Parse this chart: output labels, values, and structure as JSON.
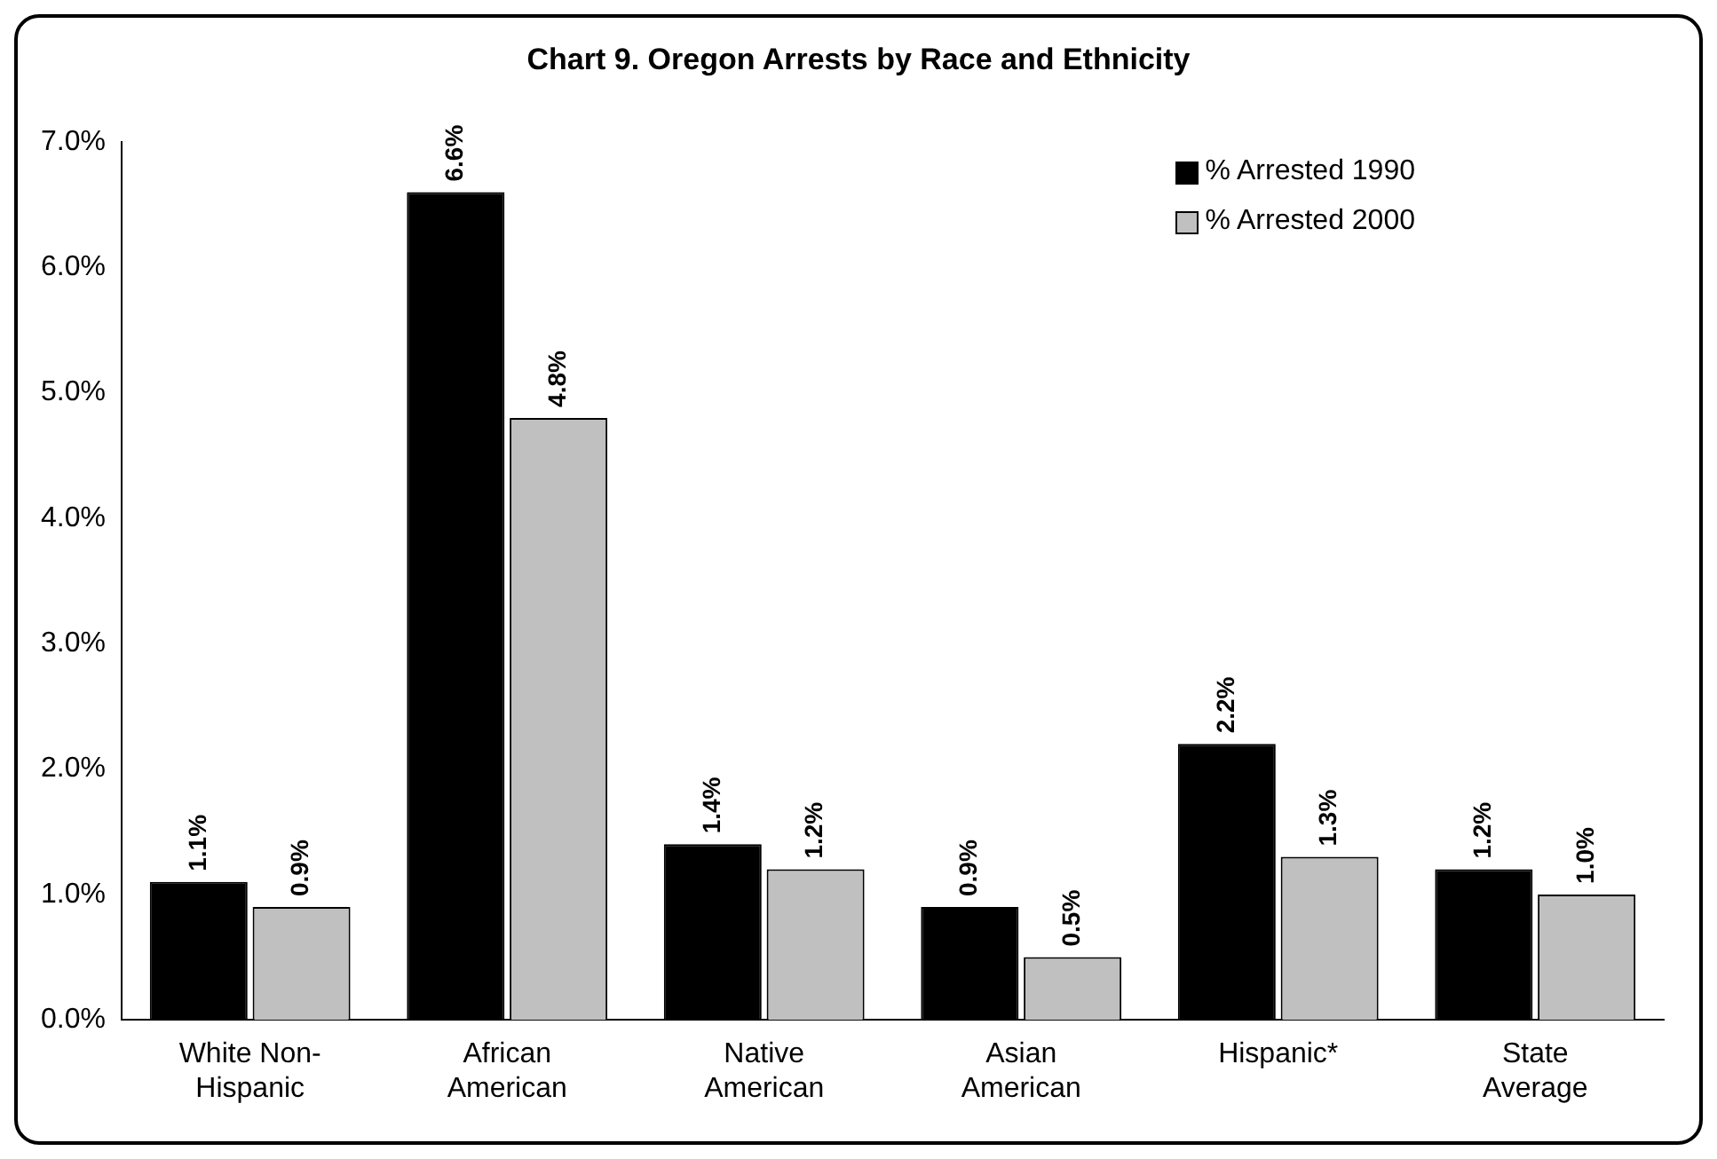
{
  "chart_data": {
    "type": "bar",
    "title": "Chart 9. Oregon Arrests by Race and Ethnicity",
    "categories": [
      "White Non-\nHispanic",
      "African\nAmerican",
      "Native\nAmerican",
      "Asian\nAmerican",
      "Hispanic*",
      "State\nAverage"
    ],
    "series": [
      {
        "name": "% Arrested 1990",
        "color": "#000000",
        "values": [
          1.1,
          6.6,
          1.4,
          0.9,
          2.2,
          1.2
        ],
        "value_labels": [
          "1.1%",
          "6.6%",
          "1.4%",
          "0.9%",
          "2.2%",
          "1.2%"
        ]
      },
      {
        "name": "% Arrested 2000",
        "color": "#c0c0c0",
        "values": [
          0.9,
          4.8,
          1.2,
          0.5,
          1.3,
          1.0
        ],
        "value_labels": [
          "0.9%",
          "4.8%",
          "1.2%",
          "0.5%",
          "1.3%",
          "1.0%"
        ]
      }
    ],
    "ylim": [
      0,
      7
    ],
    "yticks": [
      {
        "value": 0,
        "label": "0.0%"
      },
      {
        "value": 1,
        "label": "1.0%"
      },
      {
        "value": 2,
        "label": "2.0%"
      },
      {
        "value": 3,
        "label": "3.0%"
      },
      {
        "value": 4,
        "label": "4.0%"
      },
      {
        "value": 5,
        "label": "5.0%"
      },
      {
        "value": 6,
        "label": "6.0%"
      },
      {
        "value": 7,
        "label": "7.0%"
      }
    ],
    "grid": false,
    "legend": "top right"
  }
}
